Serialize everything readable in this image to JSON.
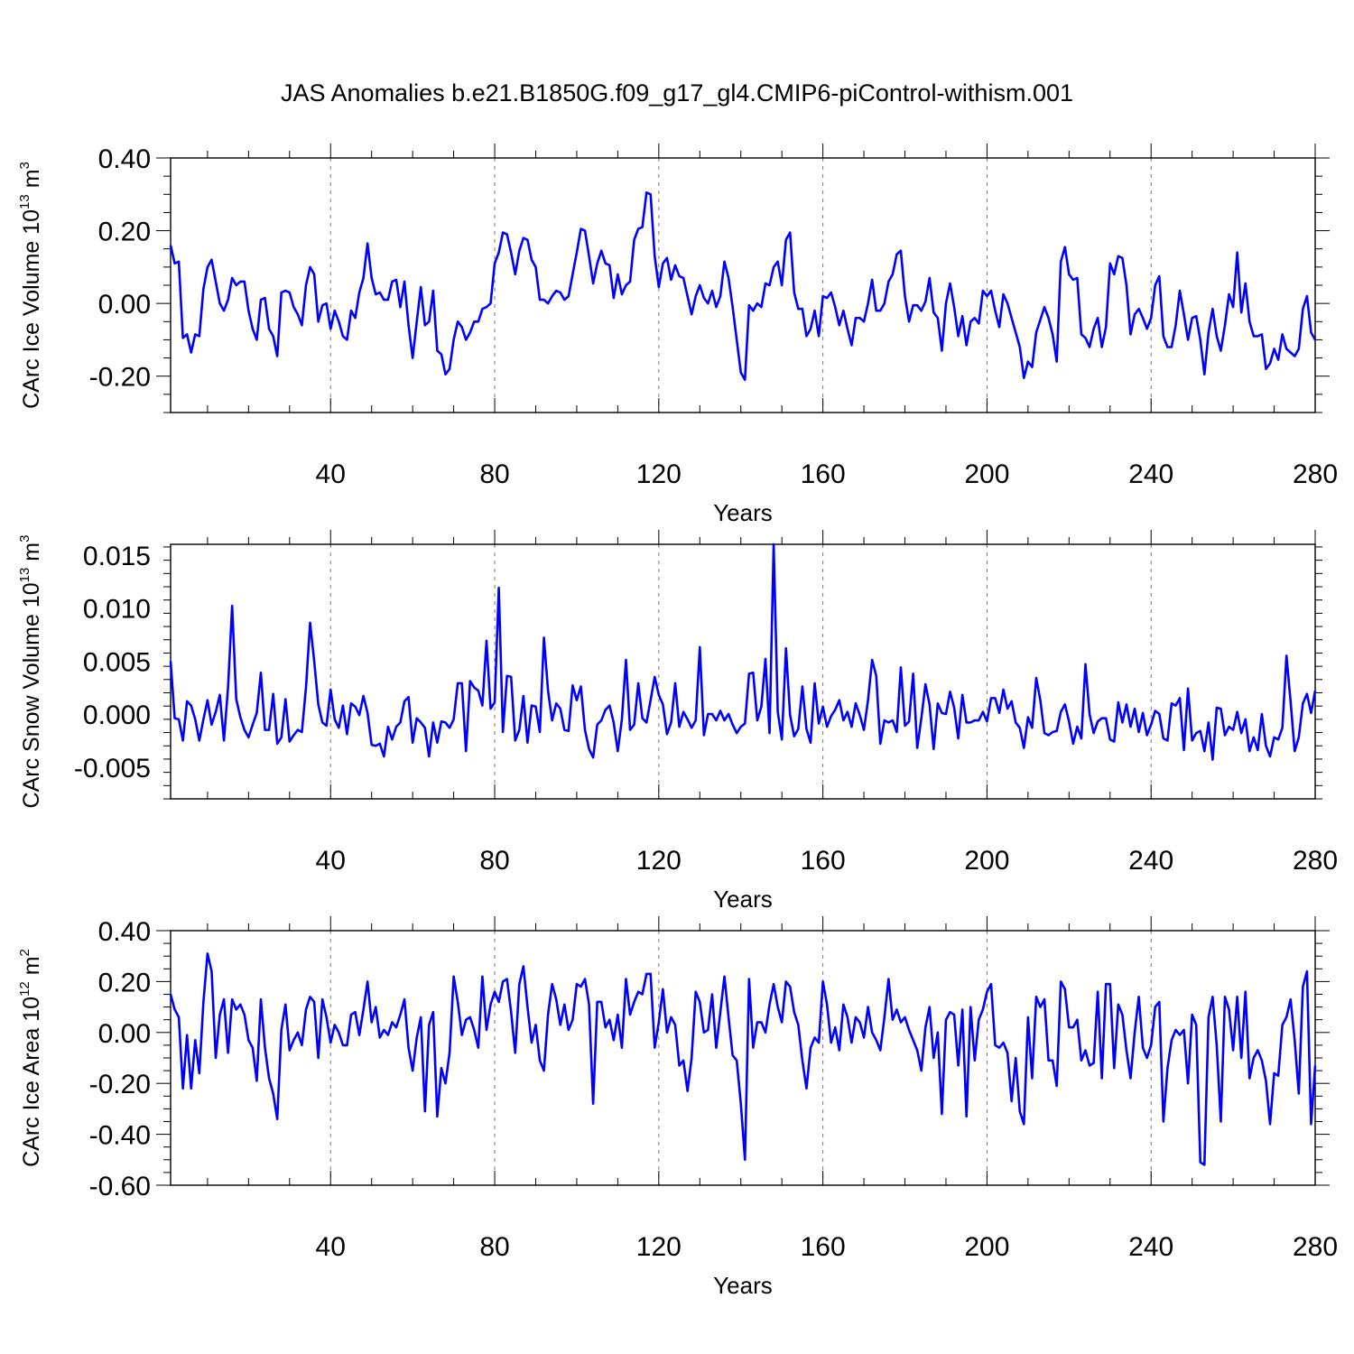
{
  "title": "JAS Anomalies b.e21.B1850G.f09_g17_gl4.CMIP6-piControl-withism.001",
  "chart_data": [
    {
      "type": "line",
      "ylabel_main": "CArc Ice Volume 10",
      "ylabel_exp": "13",
      "ylabel_unit": "m",
      "ylabel_unit_exp": "3",
      "xlabel": "Years",
      "xlim": [
        1,
        280
      ],
      "ylim": [
        -0.3,
        0.4
      ],
      "x_ticks": [
        40,
        80,
        120,
        160,
        200,
        240,
        280
      ],
      "x_tick_labels": [
        "40",
        "80",
        "120",
        "160",
        "200",
        "240",
        "280"
      ],
      "y_ticks": [
        0.4,
        0.2,
        0.0,
        -0.2
      ],
      "y_tick_labels": [
        "0.40",
        "0.20",
        "0.00",
        "-0.20"
      ],
      "grid": "x-dashed",
      "color": "#0000ff",
      "x_start": 1,
      "values": [
        0.16,
        0.11,
        0.115,
        -0.095,
        -0.085,
        -0.135,
        -0.085,
        -0.09,
        0.04,
        0.1,
        0.12,
        0.06,
        0.0,
        -0.02,
        0.01,
        0.07,
        0.05,
        0.06,
        0.06,
        -0.02,
        -0.07,
        -0.1,
        0.01,
        0.015,
        -0.07,
        -0.09,
        -0.145,
        0.03,
        0.035,
        0.03,
        -0.01,
        -0.03,
        -0.06,
        0.05,
        0.1,
        0.08,
        -0.05,
        -0.005,
        0.0,
        -0.07,
        -0.02,
        -0.05,
        -0.09,
        -0.1,
        -0.02,
        -0.04,
        0.03,
        0.07,
        0.165,
        0.07,
        0.025,
        0.03,
        0.01,
        0.01,
        0.06,
        0.065,
        -0.01,
        0.06,
        -0.06,
        -0.15,
        -0.05,
        0.045,
        -0.06,
        -0.05,
        0.035,
        -0.13,
        -0.14,
        -0.195,
        -0.18,
        -0.1,
        -0.05,
        -0.065,
        -0.1,
        -0.08,
        -0.05,
        -0.05,
        -0.015,
        -0.01,
        0.0,
        0.11,
        0.14,
        0.195,
        0.19,
        0.14,
        0.08,
        0.145,
        0.18,
        0.175,
        0.12,
        0.1,
        0.01,
        0.01,
        0.0,
        0.02,
        0.035,
        0.03,
        0.01,
        0.02,
        0.08,
        0.14,
        0.205,
        0.2,
        0.13,
        0.055,
        0.11,
        0.145,
        0.11,
        0.105,
        0.015,
        0.08,
        0.025,
        0.05,
        0.06,
        0.175,
        0.205,
        0.21,
        0.305,
        0.3,
        0.13,
        0.045,
        0.11,
        0.125,
        0.065,
        0.105,
        0.075,
        0.07,
        0.02,
        -0.03,
        0.02,
        0.05,
        0.015,
        0.0,
        0.035,
        -0.01,
        0.02,
        0.115,
        0.07,
        -0.01,
        -0.1,
        -0.19,
        -0.21,
        -0.005,
        -0.02,
        0.0,
        -0.01,
        0.055,
        0.05,
        0.1,
        0.115,
        0.05,
        0.175,
        0.195,
        0.03,
        -0.015,
        -0.015,
        -0.09,
        -0.07,
        -0.02,
        -0.09,
        0.02,
        0.015,
        0.03,
        -0.01,
        -0.06,
        -0.02,
        -0.07,
        -0.115,
        -0.04,
        -0.04,
        -0.05,
        0.0,
        0.065,
        -0.02,
        -0.02,
        0.0,
        0.06,
        0.08,
        0.135,
        0.145,
        0.02,
        -0.05,
        -0.005,
        -0.005,
        -0.02,
        0.005,
        0.07,
        -0.025,
        -0.04,
        -0.13,
        0.0,
        0.055,
        -0.01,
        -0.09,
        -0.035,
        -0.115,
        -0.05,
        -0.04,
        -0.055,
        0.035,
        0.02,
        0.035,
        -0.02,
        -0.065,
        0.025,
        0.0,
        -0.04,
        -0.08,
        -0.12,
        -0.205,
        -0.16,
        -0.175,
        -0.08,
        -0.045,
        -0.01,
        -0.04,
        -0.085,
        -0.16,
        0.115,
        0.155,
        0.08,
        0.065,
        0.07,
        -0.085,
        -0.095,
        -0.12,
        -0.07,
        -0.04,
        -0.12,
        -0.065,
        0.11,
        0.08,
        0.13,
        0.125,
        0.05,
        -0.085,
        -0.03,
        -0.015,
        -0.04,
        -0.07,
        -0.04,
        0.05,
        0.075,
        -0.09,
        -0.12,
        -0.12,
        -0.06,
        0.035,
        -0.03,
        -0.1,
        -0.04,
        -0.035,
        -0.1,
        -0.195,
        -0.08,
        -0.015,
        -0.09,
        -0.13,
        -0.06,
        0.025,
        -0.01,
        0.14,
        -0.025,
        0.055,
        -0.05,
        -0.09,
        -0.09,
        -0.085,
        -0.18,
        -0.165,
        -0.125,
        -0.155,
        -0.085,
        -0.125,
        -0.135,
        -0.145,
        -0.125,
        -0.015,
        0.02,
        -0.08,
        -0.1
      ]
    },
    {
      "type": "line",
      "ylabel_main": "CArc Snow Volume 10",
      "ylabel_exp": "13",
      "ylabel_unit": "m",
      "ylabel_unit_exp": "3",
      "xlabel": "Years",
      "xlim": [
        1,
        280
      ],
      "ylim": [
        -0.008,
        0.016
      ],
      "x_ticks": [
        40,
        80,
        120,
        160,
        200,
        240,
        280
      ],
      "x_tick_labels": [
        "40",
        "80",
        "120",
        "160",
        "200",
        "240",
        "280"
      ],
      "y_ticks": [
        0.015,
        0.01,
        0.005,
        0.0,
        -0.005
      ],
      "y_tick_labels": [
        "0.015",
        "0.010",
        "0.005",
        "0.000",
        "-0.005"
      ],
      "grid": "x-dashed",
      "color": "#0000ff",
      "x_start": 1,
      "values": [
        0.005,
        -0.0004,
        -0.0005,
        -0.0025,
        0.0012,
        0.0008,
        -0.0005,
        -0.0025,
        -0.0005,
        0.0013,
        -0.001,
        0.0002,
        0.0018,
        -0.0025,
        0.0025,
        0.0102,
        0.0014,
        -0.0003,
        -0.0015,
        -0.0022,
        -0.001,
        0.0001,
        0.0039,
        -0.0015,
        -0.0015,
        0.0019,
        -0.0028,
        -0.0022,
        0.0014,
        -0.0026,
        -0.002,
        -0.0015,
        -0.0017,
        0.0025,
        0.0086,
        0.005,
        0.0009,
        -0.0008,
        -0.0011,
        0.0023,
        -0.0005,
        -0.0013,
        0.0008,
        -0.0019,
        0.001,
        0.0007,
        -0.0001,
        0.0017,
        0.0001,
        -0.0029,
        -0.003,
        -0.0028,
        -0.004,
        -0.0012,
        -0.0024,
        -0.0012,
        -0.0008,
        0.0012,
        0.0016,
        -0.0027,
        -0.0004,
        -0.0008,
        -0.0013,
        -0.004,
        -0.0008,
        -0.0027,
        -0.0007,
        -0.0008,
        -0.0013,
        -0.0005,
        0.0029,
        0.0029,
        -0.0035,
        0.0031,
        0.0025,
        0.0022,
        0.0008,
        0.0069,
        0.0005,
        0.0011,
        0.0119,
        -0.0017,
        0.0036,
        0.0035,
        -0.0025,
        -0.0015,
        0.0017,
        -0.0027,
        0.0008,
        0.0007,
        -0.0017,
        0.0072,
        0.0022,
        -0.0006,
        0.001,
        0.0005,
        -0.0015,
        -0.0016,
        0.0027,
        0.0013,
        0.0026,
        -0.0015,
        -0.0033,
        -0.0041,
        -0.001,
        -0.0006,
        0.0004,
        0.0008,
        -0.0008,
        -0.0035,
        -0.0005,
        0.0051,
        -0.0015,
        -0.001,
        0.0029,
        -0.0004,
        -0.0008,
        0.0013,
        0.0035,
        0.0018,
        0.0009,
        -0.0019,
        -0.0008,
        0.0029,
        -0.0012,
        0.0002,
        -0.0005,
        -0.0013,
        -0.0006,
        0.0063,
        -0.002,
        0.0,
        0.0,
        -0.0006,
        0.0003,
        -0.0006,
        0.0,
        -0.001,
        -0.0018,
        -0.0012,
        -0.0009,
        0.0038,
        0.0039,
        -0.0006,
        0.0007,
        0.0052,
        -0.0018,
        0.016,
        0.0002,
        -0.0024,
        0.0062,
        -0.0001,
        -0.0021,
        -0.0014,
        0.0026,
        -0.0014,
        -0.0027,
        0.0029,
        -0.0009,
        0.0007,
        -0.0012,
        -0.0002,
        0.0004,
        0.0013,
        -0.0006,
        0.0002,
        -0.0012,
        0.001,
        -0.0001,
        -0.0015,
        0.0013,
        0.0051,
        0.0036,
        -0.0028,
        -0.0006,
        -0.0008,
        -0.0006,
        -0.0017,
        0.0044,
        -0.0011,
        -0.0007,
        0.0038,
        -0.0032,
        -0.0004,
        0.0028,
        0.0009,
        -0.0033,
        0.001,
        0.0001,
        0.0,
        0.0021,
        0.0006,
        -0.0023,
        0.0018,
        -0.0008,
        -0.0008,
        -0.0006,
        -0.0006,
        0.0002,
        -0.0007,
        0.0015,
        0.0015,
        0.0001,
        0.0023,
        0.0005,
        0.0012,
        -0.0008,
        -0.0013,
        -0.0032,
        -0.0003,
        -0.0013,
        0.0034,
        0.0013,
        -0.0018,
        -0.002,
        -0.0017,
        -0.0016,
        0.0002,
        0.0009,
        -0.0007,
        -0.0028,
        -0.0012,
        -0.0023,
        0.0047,
        0.0,
        -0.0018,
        -0.0007,
        -0.0004,
        -0.0004,
        -0.0024,
        -0.0026,
        0.0011,
        -0.0008,
        0.0009,
        -0.0012,
        0.0005,
        -0.0017,
        0.0001,
        -0.002,
        -0.001,
        0.0003,
        0.0,
        -0.0023,
        -0.0025,
        0.001,
        0.0008,
        0.0015,
        -0.0034,
        0.0024,
        -0.0025,
        -0.0018,
        -0.0016,
        -0.0035,
        -0.0008,
        -0.0043,
        0.0006,
        0.0005,
        -0.002,
        -0.0012,
        -0.0015,
        0.0002,
        -0.0018,
        -0.0005,
        -0.0035,
        -0.0022,
        -0.0034,
        0.0,
        -0.003,
        -0.004,
        -0.0022,
        -0.0024,
        -0.0013,
        0.0055,
        0.0012,
        -0.0035,
        -0.0022,
        0.001,
        0.0019,
        0.0001,
        0.0022
      ]
    },
    {
      "type": "line",
      "ylabel_main": "CArc Ice Area 10",
      "ylabel_exp": "12",
      "ylabel_unit": "m",
      "ylabel_unit_exp": "2",
      "xlabel": "Years",
      "xlim": [
        1,
        280
      ],
      "ylim": [
        -0.6,
        0.4
      ],
      "x_ticks": [
        40,
        80,
        120,
        160,
        200,
        240,
        280
      ],
      "x_tick_labels": [
        "40",
        "80",
        "120",
        "160",
        "200",
        "240",
        "280"
      ],
      "y_ticks": [
        0.4,
        0.2,
        0.0,
        -0.2,
        -0.4,
        -0.6
      ],
      "y_tick_labels": [
        "0.40",
        "0.20",
        "0.00",
        "-0.20",
        "-0.40",
        "-0.60"
      ],
      "grid": "x-dashed",
      "color": "#0000ff",
      "x_start": 1,
      "values": [
        0.15,
        0.09,
        0.06,
        -0.22,
        -0.01,
        -0.22,
        -0.03,
        -0.16,
        0.12,
        0.31,
        0.24,
        -0.1,
        0.07,
        0.13,
        -0.08,
        0.13,
        0.09,
        0.11,
        0.07,
        -0.03,
        -0.06,
        -0.19,
        0.13,
        -0.06,
        -0.18,
        -0.24,
        -0.34,
        0.01,
        0.11,
        -0.07,
        -0.03,
        0.0,
        -0.05,
        0.09,
        0.14,
        0.12,
        -0.1,
        0.13,
        0.06,
        -0.04,
        0.03,
        0.0,
        -0.05,
        -0.05,
        0.07,
        0.08,
        -0.01,
        0.09,
        0.2,
        0.04,
        0.1,
        -0.02,
        0.01,
        -0.01,
        0.04,
        0.02,
        0.07,
        0.13,
        -0.06,
        -0.15,
        -0.02,
        0.06,
        -0.31,
        0.03,
        0.08,
        -0.33,
        -0.14,
        -0.2,
        -0.08,
        0.22,
        0.12,
        -0.01,
        0.05,
        0.06,
        0.01,
        -0.06,
        0.22,
        0.01,
        0.11,
        0.16,
        0.12,
        0.2,
        0.21,
        0.08,
        -0.08,
        0.19,
        0.26,
        0.1,
        -0.04,
        0.03,
        -0.11,
        -0.15,
        0.07,
        0.19,
        0.13,
        0.03,
        0.11,
        0.01,
        0.05,
        0.19,
        0.18,
        0.21,
        0.11,
        -0.28,
        0.12,
        0.12,
        0.02,
        0.05,
        -0.03,
        0.07,
        -0.06,
        0.21,
        0.07,
        0.12,
        0.16,
        0.15,
        0.23,
        0.23,
        -0.06,
        0.04,
        0.17,
        0.0,
        0.06,
        0.03,
        -0.13,
        -0.11,
        -0.23,
        -0.1,
        0.16,
        0.12,
        0.0,
        0.01,
        0.15,
        -0.06,
        0.08,
        0.22,
        0.06,
        -0.09,
        -0.11,
        -0.28,
        -0.5,
        0.21,
        -0.06,
        0.04,
        0.04,
        0.0,
        0.11,
        0.19,
        0.1,
        0.04,
        0.2,
        0.18,
        0.08,
        0.03,
        -0.11,
        -0.22,
        -0.06,
        -0.02,
        -0.04,
        0.2,
        0.11,
        -0.04,
        0.02,
        -0.07,
        0.11,
        0.06,
        -0.04,
        0.06,
        0.04,
        -0.02,
        0.1,
        0.0,
        -0.03,
        -0.07,
        0.06,
        0.21,
        0.05,
        0.09,
        0.04,
        0.06,
        0.01,
        -0.03,
        -0.07,
        -0.15,
        0.02,
        0.1,
        -0.1,
        0.0,
        -0.32,
        0.05,
        0.08,
        0.07,
        -0.13,
        0.09,
        -0.33,
        0.1,
        -0.11,
        0.05,
        0.09,
        0.16,
        0.19,
        -0.05,
        -0.06,
        -0.04,
        -0.08,
        -0.27,
        -0.1,
        -0.31,
        -0.36,
        0.06,
        -0.18,
        0.14,
        0.1,
        0.13,
        -0.11,
        -0.11,
        -0.21,
        0.2,
        0.17,
        0.02,
        0.02,
        0.05,
        -0.11,
        -0.07,
        -0.13,
        -0.12,
        0.16,
        -0.18,
        0.19,
        0.19,
        -0.14,
        0.11,
        0.07,
        -0.07,
        -0.18,
        0.0,
        0.14,
        -0.06,
        -0.1,
        -0.05,
        0.1,
        0.12,
        -0.35,
        -0.14,
        -0.03,
        0.01,
        -0.01,
        0.01,
        -0.2,
        0.07,
        0.03,
        -0.51,
        -0.52,
        0.06,
        0.14,
        -0.05,
        -0.35,
        0.14,
        0.09,
        -0.07,
        0.14,
        -0.1,
        0.16,
        -0.18,
        -0.1,
        -0.07,
        -0.11,
        -0.19,
        -0.36,
        -0.16,
        -0.17,
        0.03,
        0.06,
        0.13,
        -0.03,
        -0.24,
        0.18,
        0.24,
        -0.36,
        -0.13
      ]
    }
  ]
}
